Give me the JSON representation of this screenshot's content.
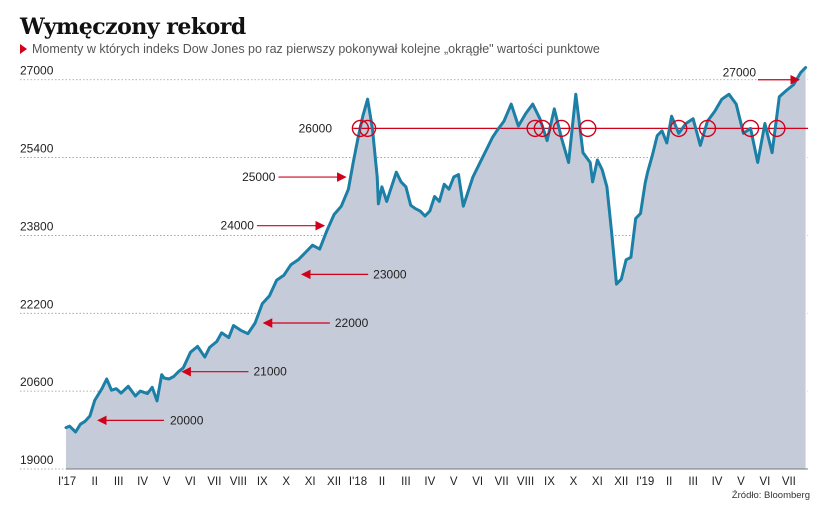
{
  "title": "Wymęczony rekord",
  "subtitle": "Momenty w których indeks Dow Jones po raz pierwszy pokonywał kolejne „okrągłe\" wartości punktowe",
  "source": "Źródło: Bloomberg",
  "colors": {
    "line": "#1b7fa6",
    "area": "#c5cbd8",
    "marker": "#d0021b",
    "grid": "#9a9a9a"
  },
  "chart_data": {
    "type": "area",
    "title": "Wymęczony rekord",
    "subtitle": "Momenty w których indeks Dow Jones po raz pierwszy pokonywał kolejne „okrągłe\" wartości punktowe",
    "xlabel": "",
    "ylabel": "",
    "ylim": [
      19000,
      27200
    ],
    "y_ticks": [
      19000,
      20600,
      22200,
      23800,
      25400,
      27000
    ],
    "y_tick_labels": [
      "19000",
      "20600",
      "22200",
      "23800",
      "25400",
      "27000"
    ],
    "x_range_months": [
      0,
      31
    ],
    "x_ticks": [
      "I'17",
      "II",
      "III",
      "IV",
      "V",
      "VI",
      "VII",
      "VIII",
      "IX",
      "X",
      "XI",
      "XII",
      "I'18",
      "II",
      "III",
      "IV",
      "V",
      "VI",
      "VII",
      "VIII",
      "IX",
      "X",
      "XI",
      "XII",
      "I'19",
      "II",
      "III",
      "IV",
      "V",
      "VI",
      "VII"
    ],
    "grid": "horizontal dotted",
    "series": [
      {
        "name": "",
        "x": [
          0,
          0.15,
          0.4,
          0.6,
          0.8,
          1.0,
          1.2,
          1.5,
          1.7,
          1.9,
          2.1,
          2.3,
          2.6,
          2.9,
          3.1,
          3.4,
          3.6,
          3.8,
          4.0,
          4.1,
          4.3,
          4.5,
          4.7,
          4.9,
          5.2,
          5.5,
          5.8,
          6.0,
          6.3,
          6.5,
          6.8,
          7.0,
          7.3,
          7.6,
          7.9,
          8.2,
          8.5,
          8.8,
          9.1,
          9.4,
          9.7,
          10.0,
          10.3,
          10.6,
          10.9,
          11.2,
          11.5,
          11.8,
          12.0,
          12.2,
          12.4,
          12.6,
          12.8,
          13.0,
          13.05,
          13.2,
          13.4,
          13.6,
          13.8,
          14.0,
          14.2,
          14.4,
          14.6,
          14.8,
          15.0,
          15.2,
          15.4,
          15.6,
          15.8,
          16.0,
          16.2,
          16.4,
          16.6,
          16.8,
          17.0,
          17.2,
          17.4,
          17.6,
          17.8,
          18.0,
          18.3,
          18.6,
          18.9,
          19.2,
          19.5,
          19.8,
          20.1,
          20.4,
          20.7,
          21.0,
          21.3,
          21.6,
          21.9,
          22.0,
          22.2,
          22.4,
          22.6,
          22.8,
          23.0,
          23.2,
          23.4,
          23.6,
          23.8,
          24.0,
          24.2,
          24.3,
          24.5,
          24.7,
          24.9,
          25.1,
          25.3,
          25.6,
          25.9,
          26.2,
          26.5,
          26.8,
          27.1,
          27.4,
          27.7,
          28.0,
          28.3,
          28.6,
          28.9,
          29.2,
          29.5,
          29.8,
          30.1,
          30.4,
          30.7,
          30.9
        ],
        "values": [
          19850,
          19880,
          19760,
          19920,
          19980,
          20090,
          20410,
          20650,
          20850,
          20620,
          20650,
          20560,
          20700,
          20500,
          20600,
          20550,
          20680,
          20400,
          20940,
          20870,
          20850,
          20900,
          21000,
          21080,
          21400,
          21520,
          21300,
          21500,
          21620,
          21800,
          21700,
          21950,
          21850,
          21780,
          22000,
          22400,
          22560,
          22880,
          22980,
          23200,
          23300,
          23450,
          23600,
          23520,
          23900,
          24230,
          24400,
          24750,
          25300,
          25800,
          26250,
          26600,
          26000,
          25000,
          24450,
          24800,
          24500,
          24800,
          25100,
          24900,
          24800,
          24420,
          24350,
          24300,
          24200,
          24300,
          24600,
          24500,
          24850,
          24750,
          25000,
          25050,
          24400,
          24700,
          25000,
          25200,
          25400,
          25600,
          25800,
          25950,
          26150,
          26500,
          26050,
          26300,
          26500,
          26200,
          25750,
          26400,
          25800,
          25300,
          26700,
          25500,
          25300,
          24900,
          25350,
          25150,
          24800,
          23850,
          22800,
          22900,
          23300,
          23350,
          24150,
          24250,
          24880,
          25100,
          25450,
          25850,
          25950,
          25700,
          26250,
          25900,
          26100,
          26200,
          25650,
          26150,
          26350,
          26600,
          26700,
          26500,
          25900,
          26000,
          25300,
          26100,
          25500,
          26650,
          26780,
          26900,
          27150,
          27250
        ],
        "color": "#1b7fa6"
      }
    ],
    "annotations": [
      {
        "label": "20000",
        "value": 20000,
        "month": 1.1
      },
      {
        "label": "21000",
        "value": 21000,
        "month": 4.7
      },
      {
        "label": "22000",
        "value": 22000,
        "month": 8.1
      },
      {
        "label": "23000",
        "value": 23000,
        "month": 9.7
      },
      {
        "label": "24000",
        "value": 24000,
        "month": 10.9
      },
      {
        "label": "25000",
        "value": 25000,
        "month": 11.8
      },
      {
        "label": "26000",
        "value": 26000,
        "month": 12.3
      },
      {
        "label": "27000",
        "value": 27000,
        "month": 30.7
      }
    ],
    "reference_line": {
      "value": 26000
    },
    "crossings_26000": [
      12.3,
      12.6,
      19.6,
      19.9,
      20.7,
      21.8,
      25.6,
      26.8,
      28.6,
      29.7
    ]
  }
}
